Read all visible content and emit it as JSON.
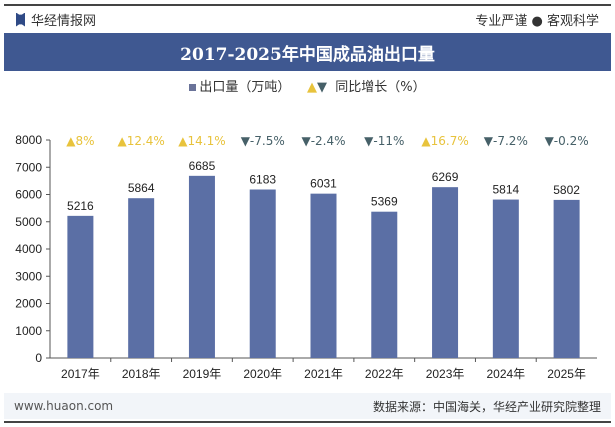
{
  "header": {
    "brand": "华经情报网",
    "slogan": "专业严谨 ● 客观科学"
  },
  "chart_data": {
    "type": "bar",
    "title": "2017-2025年中国成品油出口量",
    "categories": [
      "2017年",
      "2018年",
      "2019年",
      "2020年",
      "2021年",
      "2022年",
      "2023年",
      "2024年",
      "2025年"
    ],
    "series": [
      {
        "name": "出口量（万吨）",
        "values": [
          5216,
          5864,
          6685,
          6183,
          6031,
          5369,
          6269,
          5814,
          5802
        ]
      }
    ],
    "growth": {
      "name": "同比增长（%）",
      "labels": [
        "8%",
        "12.4%",
        "14.1%",
        "-7.5%",
        "-2.4%",
        "-11%",
        "16.7%",
        "-7.2%",
        "-0.2%"
      ],
      "directions": [
        "up",
        "up",
        "up",
        "down",
        "down",
        "down",
        "up",
        "down",
        "down"
      ]
    },
    "ylim": [
      0,
      8000
    ],
    "yticks": [
      "0",
      "1000",
      "2000",
      "3000",
      "4000",
      "5000",
      "6000",
      "7000",
      "8000"
    ],
    "grid": false,
    "legend": "top-center",
    "colors": {
      "bar": "#5b6fa5",
      "up": "#e8c33c",
      "down": "#466068"
    }
  },
  "footer": {
    "url": "www.huaon.com",
    "source": "数据来源：中国海关，华经产业研究院整理"
  }
}
